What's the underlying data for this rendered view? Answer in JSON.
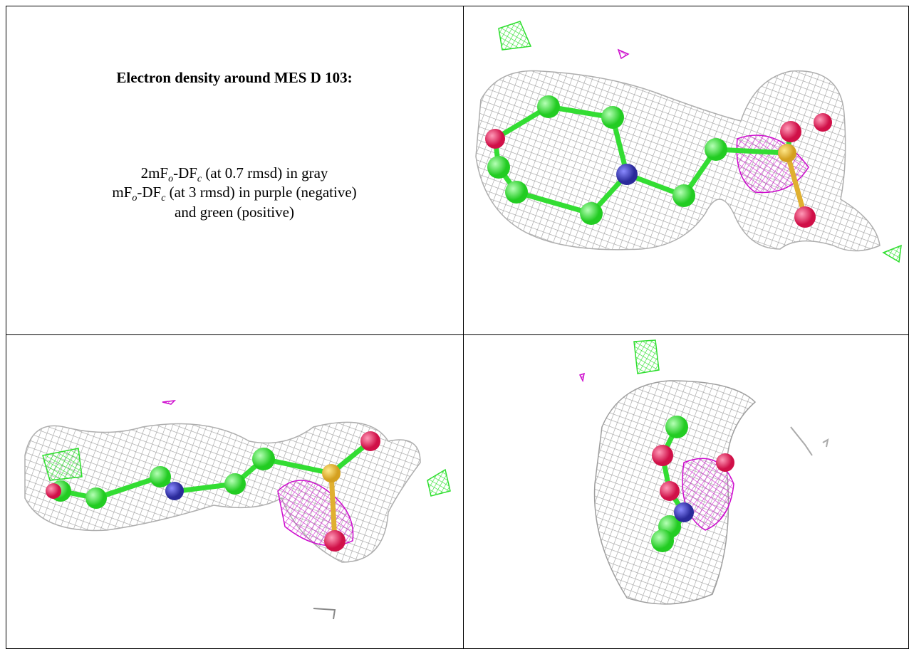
{
  "caption": {
    "title": "Electron density around MES D 103:",
    "lines": [
      [
        "2mF",
        "o",
        "-DF",
        "c",
        " (at 0.7 rmsd) in gray"
      ],
      [
        "mF",
        "o",
        "-DF",
        "c",
        " (at 3 rmsd) in purple (negative)"
      ],
      [
        "and green (positive)"
      ]
    ]
  }
}
